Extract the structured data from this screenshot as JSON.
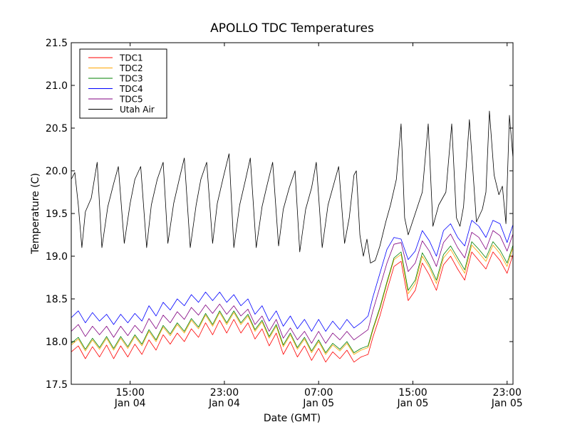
{
  "chart_data": {
    "type": "line",
    "title": "APOLLO TDC Temperatures",
    "xlabel": "Date (GMT)",
    "ylabel": "Temperature (C)",
    "x_unit": "hours since 2024-01-04 10:00 GMT",
    "xlim": [
      0,
      37.5
    ],
    "ylim": [
      17.5,
      21.5
    ],
    "yticks": [
      17.5,
      18.0,
      18.5,
      19.0,
      19.5,
      20.0,
      20.5,
      21.0,
      21.5
    ],
    "ytick_labels": [
      "17.5",
      "18.0",
      "18.5",
      "19.0",
      "19.5",
      "20.0",
      "20.5",
      "21.0",
      "21.5"
    ],
    "xticks": [
      {
        "value": 5,
        "time": "15:00",
        "date": "Jan 04"
      },
      {
        "value": 13,
        "time": "23:00",
        "date": "Jan 04"
      },
      {
        "value": 21,
        "time": "07:00",
        "date": "Jan 05"
      },
      {
        "value": 29,
        "time": "15:00",
        "date": "Jan 05"
      },
      {
        "value": 37,
        "time": "23:00",
        "date": "Jan 05"
      }
    ],
    "legend_position": "top-left",
    "series": [
      {
        "name": "TDC1",
        "color": "#ff0000",
        "x": [
          0,
          0.6,
          1.2,
          1.8,
          2.4,
          3,
          3.6,
          4.2,
          4.8,
          5.4,
          6,
          6.6,
          7.2,
          7.8,
          8.4,
          9,
          9.6,
          10.2,
          10.8,
          11.4,
          12,
          12.6,
          13.2,
          13.8,
          14.4,
          15,
          15.6,
          16.2,
          16.8,
          17.4,
          18,
          18.6,
          19.2,
          19.8,
          20.4,
          21,
          21.6,
          22.2,
          22.8,
          23.4,
          24,
          24.6,
          25.2,
          25.6,
          26.2,
          26.8,
          27.4,
          28,
          28.6,
          29.2,
          29.8,
          30.4,
          31,
          31.6,
          32.2,
          32.8,
          33.4,
          34,
          34.6,
          35.2,
          35.8,
          36.4,
          37,
          37.5
        ],
        "y": [
          17.88,
          17.95,
          17.8,
          17.94,
          17.82,
          17.96,
          17.8,
          17.95,
          17.82,
          17.97,
          17.85,
          18.02,
          17.9,
          18.08,
          17.97,
          18.1,
          18.0,
          18.15,
          18.05,
          18.22,
          18.08,
          18.25,
          18.1,
          18.26,
          18.1,
          18.22,
          18.03,
          18.15,
          17.95,
          18.1,
          17.85,
          18.0,
          17.82,
          17.95,
          17.78,
          17.92,
          17.76,
          17.88,
          17.8,
          17.9,
          17.76,
          17.82,
          17.85,
          18.05,
          18.3,
          18.6,
          18.88,
          18.94,
          18.48,
          18.6,
          18.92,
          18.78,
          18.6,
          18.9,
          19.0,
          18.85,
          18.72,
          19.05,
          18.95,
          18.85,
          19.05,
          18.95,
          18.8,
          19.02
        ]
      },
      {
        "name": "TDC2",
        "color": "#ffa500",
        "x": [
          0,
          0.6,
          1.2,
          1.8,
          2.4,
          3,
          3.6,
          4.2,
          4.8,
          5.4,
          6,
          6.6,
          7.2,
          7.8,
          8.4,
          9,
          9.6,
          10.2,
          10.8,
          11.4,
          12,
          12.6,
          13.2,
          13.8,
          14.4,
          15,
          15.6,
          16.2,
          16.8,
          17.4,
          18,
          18.6,
          19.2,
          19.8,
          20.4,
          21,
          21.6,
          22.2,
          22.8,
          23.4,
          24,
          24.6,
          25.2,
          25.6,
          26.2,
          26.8,
          27.4,
          28,
          28.6,
          29.2,
          29.8,
          30.4,
          31,
          31.6,
          32.2,
          32.8,
          33.4,
          34,
          34.6,
          35.2,
          35.8,
          36.4,
          37,
          37.5
        ],
        "y": [
          17.96,
          18.03,
          17.89,
          18.02,
          17.91,
          18.04,
          17.9,
          18.04,
          17.92,
          18.06,
          17.95,
          18.12,
          18.0,
          18.17,
          18.07,
          18.2,
          18.1,
          18.25,
          18.15,
          18.31,
          18.18,
          18.34,
          18.2,
          18.34,
          18.2,
          18.3,
          18.12,
          18.23,
          18.04,
          18.18,
          17.94,
          18.08,
          17.91,
          18.03,
          17.87,
          18.0,
          17.85,
          17.96,
          17.89,
          17.98,
          17.85,
          17.9,
          17.93,
          18.13,
          18.38,
          18.68,
          18.96,
          19.02,
          18.56,
          18.68,
          19.0,
          18.87,
          18.68,
          18.98,
          19.08,
          18.94,
          18.8,
          19.13,
          19.04,
          18.94,
          19.13,
          19.03,
          18.88,
          19.1
        ]
      },
      {
        "name": "TDC3",
        "color": "#008000",
        "x": [
          0,
          0.6,
          1.2,
          1.8,
          2.4,
          3,
          3.6,
          4.2,
          4.8,
          5.4,
          6,
          6.6,
          7.2,
          7.8,
          8.4,
          9,
          9.6,
          10.2,
          10.8,
          11.4,
          12,
          12.6,
          13.2,
          13.8,
          14.4,
          15,
          15.6,
          16.2,
          16.8,
          17.4,
          18,
          18.6,
          19.2,
          19.8,
          20.4,
          21,
          21.6,
          22.2,
          22.8,
          23.4,
          24,
          24.6,
          25.2,
          25.6,
          26.2,
          26.8,
          27.4,
          28,
          28.6,
          29.2,
          29.8,
          30.4,
          31,
          31.6,
          32.2,
          32.8,
          33.4,
          34,
          34.6,
          35.2,
          35.8,
          36.4,
          37,
          37.5
        ],
        "y": [
          17.98,
          18.05,
          17.91,
          18.04,
          17.93,
          18.06,
          17.92,
          18.06,
          17.94,
          18.08,
          17.97,
          18.14,
          18.02,
          18.19,
          18.09,
          18.22,
          18.12,
          18.27,
          18.17,
          18.33,
          18.2,
          18.36,
          18.22,
          18.36,
          18.22,
          18.32,
          18.14,
          18.25,
          18.06,
          18.2,
          17.96,
          18.1,
          17.93,
          18.05,
          17.89,
          18.02,
          17.87,
          17.98,
          17.91,
          18.0,
          17.87,
          17.92,
          17.95,
          18.15,
          18.4,
          18.7,
          18.98,
          19.05,
          18.6,
          18.72,
          19.04,
          18.9,
          18.72,
          19.02,
          19.12,
          18.98,
          18.84,
          19.17,
          19.08,
          18.98,
          19.17,
          19.07,
          18.92,
          19.13
        ]
      },
      {
        "name": "TDC4",
        "color": "#0000ff",
        "x": [
          0,
          0.6,
          1.2,
          1.8,
          2.4,
          3,
          3.6,
          4.2,
          4.8,
          5.4,
          6,
          6.6,
          7.2,
          7.8,
          8.4,
          9,
          9.6,
          10.2,
          10.8,
          11.4,
          12,
          12.6,
          13.2,
          13.8,
          14.4,
          15,
          15.6,
          16.2,
          16.8,
          17.4,
          18,
          18.6,
          19.2,
          19.8,
          20.4,
          21,
          21.6,
          22.2,
          22.8,
          23.4,
          24,
          24.6,
          25.2,
          25.6,
          26.2,
          26.8,
          27.4,
          28,
          28.6,
          29.2,
          29.8,
          30.4,
          31,
          31.6,
          32.2,
          32.8,
          33.4,
          34,
          34.6,
          35.2,
          35.8,
          36.4,
          37,
          37.5
        ],
        "y": [
          18.28,
          18.36,
          18.22,
          18.34,
          18.24,
          18.32,
          18.2,
          18.32,
          18.22,
          18.33,
          18.24,
          18.42,
          18.3,
          18.46,
          18.37,
          18.5,
          18.42,
          18.55,
          18.46,
          18.58,
          18.48,
          18.58,
          18.46,
          18.55,
          18.42,
          18.5,
          18.32,
          18.42,
          18.24,
          18.36,
          18.18,
          18.3,
          18.15,
          18.26,
          18.12,
          18.26,
          18.12,
          18.24,
          18.14,
          18.26,
          18.16,
          18.22,
          18.3,
          18.52,
          18.8,
          19.08,
          19.22,
          19.2,
          18.96,
          19.06,
          19.3,
          19.18,
          19.0,
          19.3,
          19.38,
          19.22,
          19.12,
          19.42,
          19.35,
          19.22,
          19.42,
          19.38,
          19.16,
          19.37
        ]
      },
      {
        "name": "TDC5",
        "color": "#800080",
        "x": [
          0,
          0.6,
          1.2,
          1.8,
          2.4,
          3,
          3.6,
          4.2,
          4.8,
          5.4,
          6,
          6.6,
          7.2,
          7.8,
          8.4,
          9,
          9.6,
          10.2,
          10.8,
          11.4,
          12,
          12.6,
          13.2,
          13.8,
          14.4,
          15,
          15.6,
          16.2,
          16.8,
          17.4,
          18,
          18.6,
          19.2,
          19.8,
          20.4,
          21,
          21.6,
          22.2,
          22.8,
          23.4,
          24,
          24.6,
          25.2,
          25.6,
          26.2,
          26.8,
          27.4,
          28,
          28.6,
          29.2,
          29.8,
          30.4,
          31,
          31.6,
          32.2,
          32.8,
          33.4,
          34,
          34.6,
          35.2,
          35.8,
          36.4,
          37,
          37.5
        ],
        "y": [
          18.12,
          18.2,
          18.06,
          18.18,
          18.08,
          18.18,
          18.05,
          18.18,
          18.07,
          18.19,
          18.1,
          18.27,
          18.15,
          18.31,
          18.22,
          18.35,
          18.26,
          18.4,
          18.31,
          18.43,
          18.33,
          18.44,
          18.32,
          18.42,
          18.3,
          18.38,
          18.2,
          18.3,
          18.12,
          18.26,
          18.04,
          18.16,
          18.02,
          18.12,
          17.98,
          18.12,
          17.98,
          18.1,
          18.02,
          18.12,
          18.02,
          18.08,
          18.14,
          18.36,
          18.64,
          18.92,
          19.14,
          19.16,
          18.82,
          18.92,
          19.18,
          19.06,
          18.88,
          19.16,
          19.26,
          19.1,
          18.98,
          19.28,
          19.22,
          19.08,
          19.3,
          19.24,
          19.06,
          19.26
        ]
      },
      {
        "name": "Utah Air",
        "color": "#000000",
        "x": [
          0,
          0.3,
          0.6,
          0.9,
          1.2,
          1.7,
          2.2,
          2.6,
          3.1,
          3.6,
          4.0,
          4.5,
          5.0,
          5.4,
          5.9,
          6.4,
          6.8,
          7.3,
          7.8,
          8.2,
          8.7,
          9.2,
          9.6,
          10.1,
          10.6,
          11.0,
          11.5,
          12.0,
          12.4,
          12.9,
          13.4,
          13.8,
          14.3,
          14.8,
          15.2,
          15.7,
          16.2,
          16.6,
          17.1,
          17.6,
          18.0,
          18.5,
          19.0,
          19.4,
          19.9,
          20.4,
          20.8,
          21.3,
          21.8,
          22.2,
          22.7,
          23.2,
          23.6,
          24.0,
          24.2,
          24.5,
          24.8,
          25.1,
          25.4,
          25.8,
          26.2,
          26.7,
          27.1,
          27.6,
          28.0,
          28.3,
          28.6,
          29.2,
          29.8,
          30.3,
          30.7,
          31.2,
          31.8,
          32.3,
          32.7,
          33.0,
          33.3,
          33.8,
          34.4,
          34.9,
          35.2,
          35.5,
          35.9,
          36.3,
          36.6,
          36.9,
          37.2,
          37.5
        ],
        "y": [
          19.9,
          19.98,
          19.6,
          19.1,
          19.52,
          19.68,
          20.1,
          19.1,
          19.58,
          19.85,
          20.05,
          19.15,
          19.62,
          19.9,
          20.05,
          19.1,
          19.6,
          19.9,
          20.1,
          19.15,
          19.62,
          19.92,
          20.15,
          19.1,
          19.6,
          19.9,
          20.1,
          19.15,
          19.62,
          19.92,
          20.2,
          19.1,
          19.6,
          19.9,
          20.15,
          19.1,
          19.58,
          19.82,
          20.1,
          19.12,
          19.55,
          19.8,
          20.0,
          19.05,
          19.55,
          19.8,
          20.1,
          19.1,
          19.6,
          19.8,
          20.05,
          19.15,
          19.45,
          19.95,
          20.0,
          19.25,
          19.0,
          19.2,
          18.92,
          18.95,
          19.12,
          19.4,
          19.6,
          19.9,
          20.55,
          19.45,
          19.25,
          19.5,
          19.75,
          20.55,
          19.35,
          19.6,
          19.75,
          20.55,
          19.45,
          19.35,
          19.58,
          20.6,
          19.4,
          19.55,
          19.75,
          20.7,
          19.95,
          19.72,
          19.82,
          19.38,
          20.65,
          20.15
        ]
      }
    ]
  }
}
